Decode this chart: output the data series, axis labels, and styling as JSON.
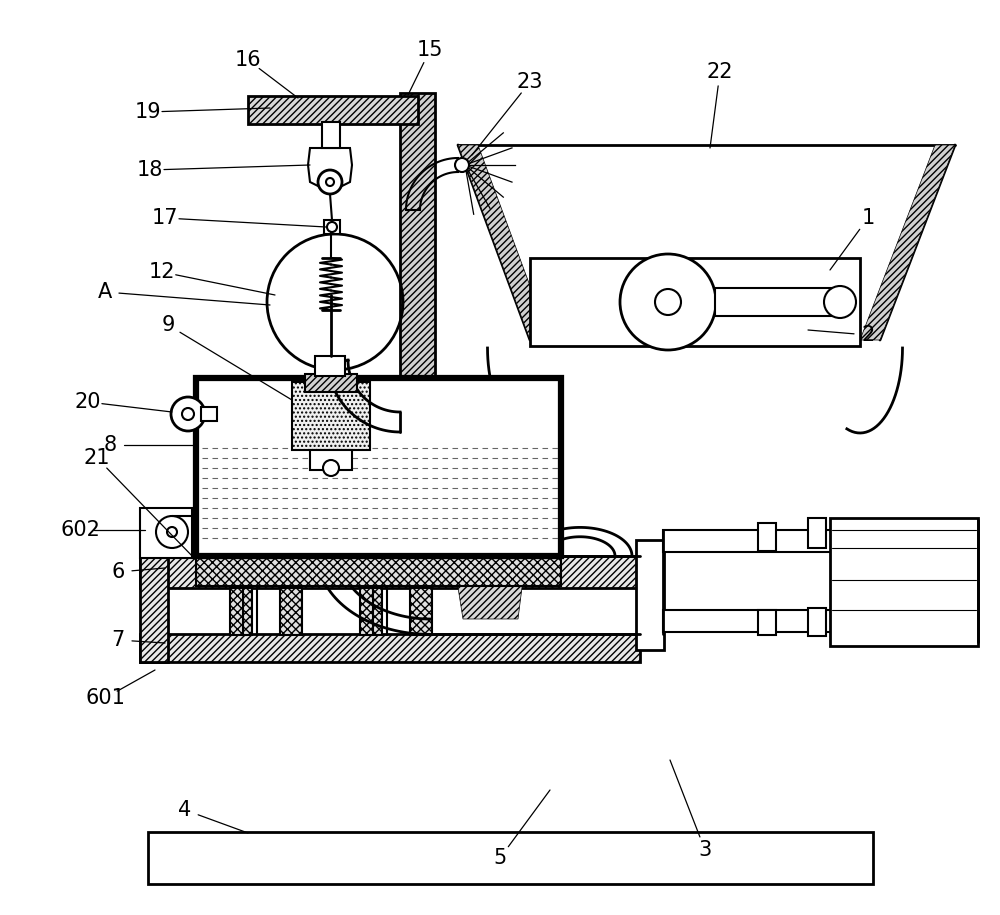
{
  "bg_color": "#ffffff",
  "fig_width": 10.0,
  "fig_height": 9.15,
  "label_fontsize": 15,
  "labels": [
    [
      "1",
      870,
      218
    ],
    [
      "2",
      870,
      335
    ],
    [
      "3",
      700,
      850
    ],
    [
      "4",
      185,
      810
    ],
    [
      "5",
      500,
      855
    ],
    [
      "6",
      118,
      572
    ],
    [
      "7",
      118,
      635
    ],
    [
      "601",
      105,
      698
    ],
    [
      "602",
      80,
      528
    ],
    [
      "8",
      110,
      442
    ],
    [
      "9",
      168,
      322
    ],
    [
      "12",
      162,
      272
    ],
    [
      "15",
      430,
      50
    ],
    [
      "16",
      248,
      60
    ],
    [
      "17",
      165,
      215
    ],
    [
      "18",
      150,
      170
    ],
    [
      "19",
      148,
      112
    ],
    [
      "20",
      88,
      402
    ],
    [
      "21",
      97,
      458
    ],
    [
      "22",
      720,
      72
    ],
    [
      "23",
      530,
      82
    ],
    [
      "A",
      105,
      292
    ]
  ]
}
